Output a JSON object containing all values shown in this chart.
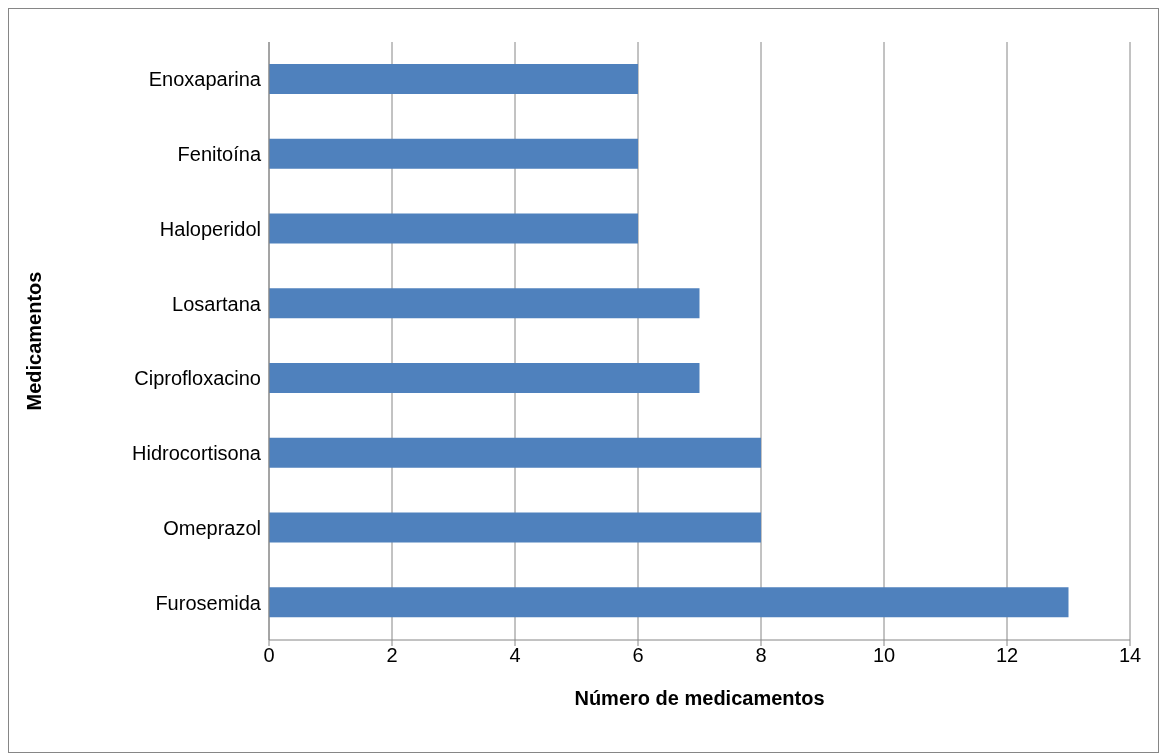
{
  "chart_data": {
    "type": "bar",
    "orientation": "horizontal",
    "xlabel": "Número de medicamentos",
    "ylabel": "Medicamentos",
    "categories": [
      "Enoxaparina",
      "Fenitoína",
      "Haloperidol",
      "Losartana",
      "Ciprofloxacino",
      "Hidrocortisona",
      "Omeprazol",
      "Furosemida"
    ],
    "values": [
      6,
      6,
      6,
      7,
      7,
      8,
      8,
      13
    ],
    "color": "#4f81bd",
    "xlim": [
      0,
      14
    ],
    "xticks": [
      0,
      2,
      4,
      6,
      8,
      10,
      12,
      14
    ],
    "grid": "x"
  }
}
